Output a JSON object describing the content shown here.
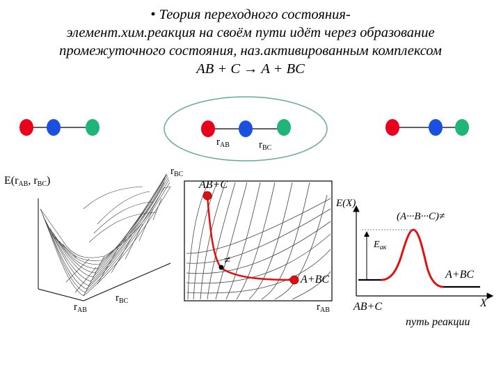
{
  "title": {
    "line1": "• Теория переходного состояния-",
    "line2": "элемент.хим.реакция на своём пути идёт через образование",
    "line3": "промежуточного состояния, наз.активированным комплексом",
    "line4": "AB + C → A + BC"
  },
  "molecules": {
    "atom_colors": {
      "A": "#e8001c",
      "B": "#1a4fe0",
      "C": "#1fb579"
    },
    "ellipse_label_rab": "r",
    "ellipse_label_rab_sub": "AB",
    "ellipse_label_rbc": "r",
    "ellipse_label_rbc_sub": "BC"
  },
  "surface_plot": {
    "z_label": "E(r",
    "z_label_sub1": "AB",
    "z_label_mid": ", r",
    "z_label_sub2": "BC",
    "z_label_end": ")",
    "x_label": "r",
    "x_label_sub": "AB",
    "y_label": "r",
    "y_label_sub": "BC"
  },
  "contour_plot": {
    "y_axis_label": "r",
    "y_axis_label_sub": "BC",
    "x_axis_label": "r",
    "x_axis_label_sub": "AB",
    "start_label": "AB+C",
    "end_label": "A+BC",
    "ts_symbol": "≠",
    "path_color": "#e01010"
  },
  "energy_profile": {
    "y_axis_label": "E(X)",
    "peak_label": "(A···B···C)≠",
    "ea_label": "E",
    "ea_sub": "ак",
    "reactant_label": "AB+C",
    "product_label": "A+BC",
    "x_axis_label": "X",
    "x_axis_caption": "путь реакции",
    "curve_color": "#e01010"
  }
}
